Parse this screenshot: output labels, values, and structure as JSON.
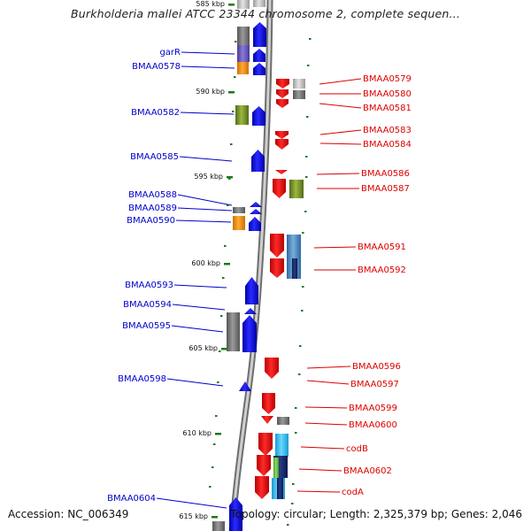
{
  "title": "Burkholderia mallei ATCC 23344 chromosome 2, complete sequen...",
  "footer": {
    "accession": "Accession: NC_006349",
    "summary": "Topology: circular; Length: 2,325,379 bp; Genes: 2,046"
  },
  "colors": {
    "backbone": "#8c8c8c",
    "left_labels": "#0000cc",
    "right_labels": "#dd0000",
    "forward_gene": "#0000ee",
    "reverse_gene": "#ee0000",
    "tick": "#1a7a1a"
  },
  "ticks": [
    {
      "label": "585 kbp"
    },
    {
      "label": "590 kbp"
    },
    {
      "label": "595 kbp"
    },
    {
      "label": "600 kbp"
    },
    {
      "label": "605 kbp"
    },
    {
      "label": "610 kbp"
    },
    {
      "label": "615 kbp"
    }
  ],
  "left_genes": [
    {
      "label": "garR"
    },
    {
      "label": "BMAA0578"
    },
    {
      "label": "BMAA0582"
    },
    {
      "label": "BMAA0585"
    },
    {
      "label": "BMAA0588"
    },
    {
      "label": "BMAA0589"
    },
    {
      "label": "BMAA0590"
    },
    {
      "label": "BMAA0593"
    },
    {
      "label": "BMAA0594"
    },
    {
      "label": "BMAA0595"
    },
    {
      "label": "BMAA0598"
    },
    {
      "label": "BMAA0604"
    }
  ],
  "right_genes": [
    {
      "label": "BMAA0579"
    },
    {
      "label": "BMAA0580"
    },
    {
      "label": "BMAA0581"
    },
    {
      "label": "BMAA0583"
    },
    {
      "label": "BMAA0584"
    },
    {
      "label": "BMAA0586"
    },
    {
      "label": "BMAA0587"
    },
    {
      "label": "BMAA0591"
    },
    {
      "label": "BMAA0592"
    },
    {
      "label": "BMAA0596"
    },
    {
      "label": "BMAA0597"
    },
    {
      "label": "BMAA0599"
    },
    {
      "label": "BMAA0600"
    },
    {
      "label": "codB"
    },
    {
      "label": "BMAA0602"
    },
    {
      "label": "codA"
    }
  ]
}
